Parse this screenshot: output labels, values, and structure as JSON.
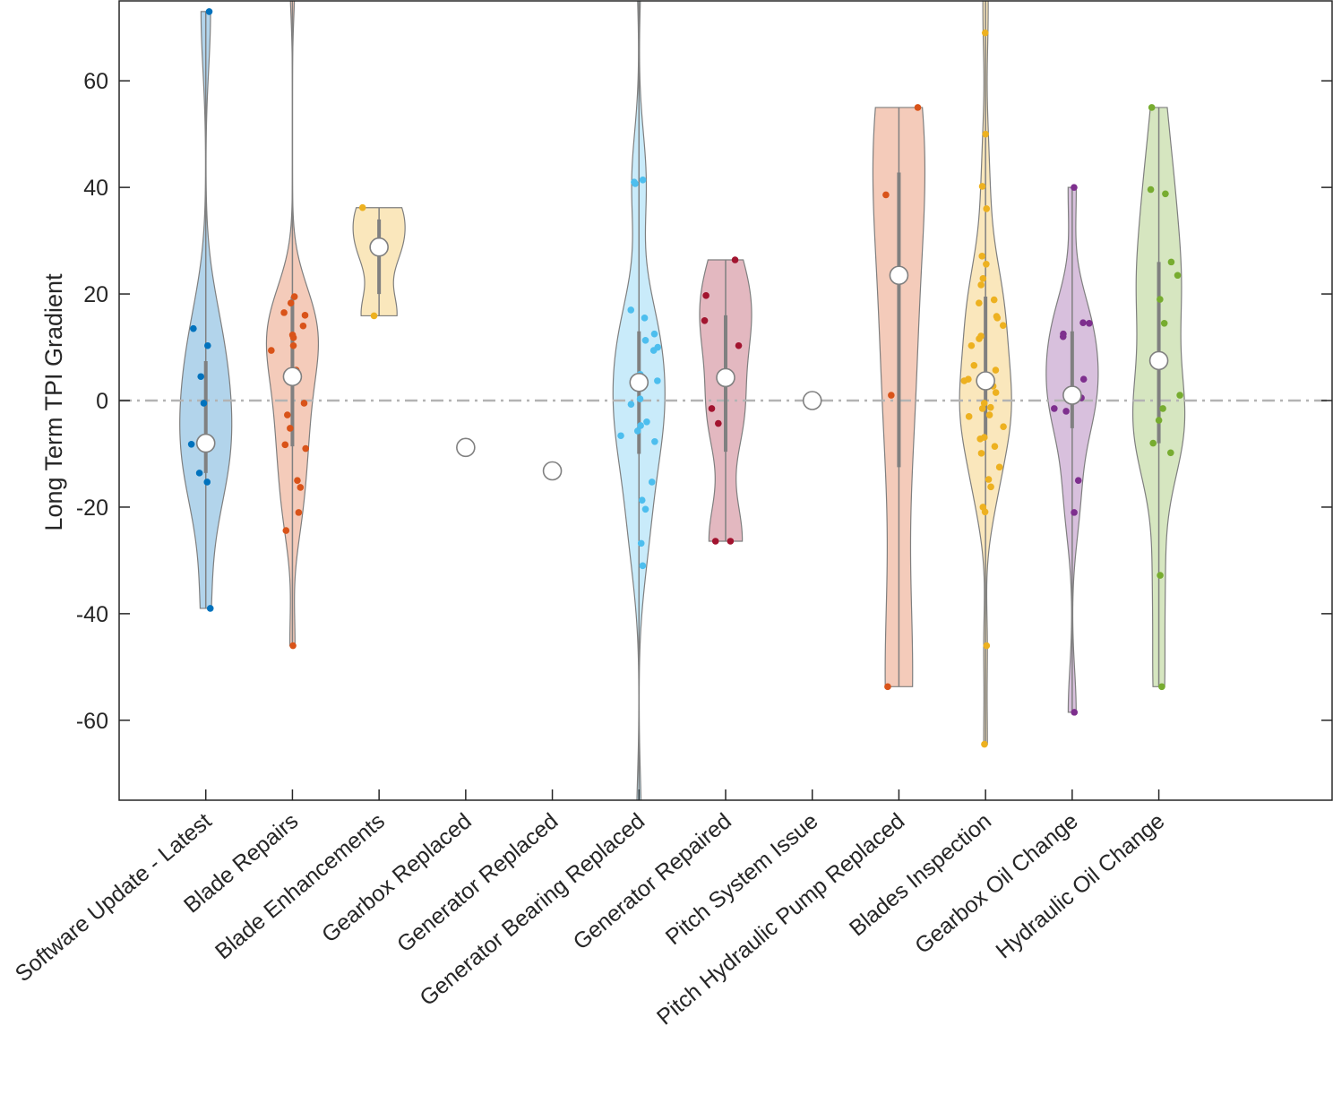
{
  "chart_data": {
    "type": "violin",
    "title": "",
    "xlabel": "",
    "ylabel": "Long Term TPI Gradient",
    "ylim": [
      -75,
      75
    ],
    "xlim": [
      0,
      14
    ],
    "yticks": [
      -60,
      -40,
      -20,
      0,
      20,
      40,
      60
    ],
    "ytick_labels": [
      "-60",
      "-40",
      "-20",
      "0",
      "20",
      "40",
      "60"
    ],
    "reference_line": {
      "y": 0,
      "style": "dash-dot",
      "color": "#b3b3b3"
    },
    "grid": false,
    "categories": [
      {
        "name": "Software Update - Latest",
        "color": "#0072BD",
        "median": -8,
        "q1": -13.6,
        "q3": 7.4,
        "points": [
          73,
          13.5,
          10.3,
          4.5,
          -0.5,
          -8,
          -8.2,
          -13.6,
          -15.3,
          -39
        ]
      },
      {
        "name": "Blade Repairs",
        "color": "#D95319",
        "median": 4.5,
        "q1": -8.6,
        "q3": 19.5,
        "points": [
          80,
          19.5,
          18.3,
          16.5,
          16,
          14,
          12.3,
          11.8,
          10.3,
          9.4,
          5.7,
          5.4,
          3.9,
          -0.5,
          -2.7,
          -5.2,
          -8.3,
          -9,
          -15,
          -16.3,
          -21,
          -24.4,
          -46
        ]
      },
      {
        "name": "Blade Enhancements",
        "color": "#EDB120",
        "median": 28.8,
        "q1": 20,
        "q3": 34,
        "points": [
          36.2,
          28.8,
          15.9
        ]
      },
      {
        "name": "Gearbox Replaced",
        "color": "#7E2F8E",
        "median": -8.8,
        "q1": -8.8,
        "q3": -8.8,
        "points": []
      },
      {
        "name": "Generator Replaced",
        "color": "#77AC30",
        "median": -13.2,
        "q1": -13.2,
        "q3": -13.2,
        "points": []
      },
      {
        "name": "Generator Bearing Replaced",
        "color": "#4DBEEE",
        "median": 3.4,
        "q1": -10,
        "q3": 13,
        "points": [
          85,
          41,
          41.4,
          40.7,
          17,
          15.5,
          12.5,
          11.3,
          10,
          9.4,
          4.9,
          3.7,
          0.3,
          -0.7,
          -4,
          -4.7,
          -5.7,
          -6.6,
          -7.7,
          -15.3,
          -18.7,
          -20.4,
          -26.8,
          -31,
          -80
        ]
      },
      {
        "name": "Generator Repaired",
        "color": "#A2142F",
        "median": 4.3,
        "q1": -9.6,
        "q3": 16,
        "points": [
          26.4,
          19.7,
          15,
          10.3,
          -1.5,
          -4.3,
          -26.4,
          -26.4
        ]
      },
      {
        "name": "Pitch System Issue",
        "color": "#0072BD",
        "median": 0,
        "q1": 0,
        "q3": 0,
        "points": []
      },
      {
        "name": "Pitch Hydraulic Pump Replaced",
        "color": "#D95319",
        "median": 23.5,
        "q1": -12.5,
        "q3": 42.8,
        "points": [
          55,
          38.6,
          1,
          -53.7
        ]
      },
      {
        "name": "Blades Inspection",
        "color": "#EDB120",
        "median": 3.7,
        "q1": -7.2,
        "q3": 19.5,
        "points": [
          80,
          69,
          50,
          40.2,
          36,
          27.1,
          25.6,
          22.9,
          21.7,
          18.9,
          18.3,
          15.8,
          15.5,
          14.1,
          12.1,
          11.6,
          10.3,
          6.6,
          5.7,
          4,
          3.7,
          2.7,
          1.5,
          -0.5,
          -1.3,
          -1.5,
          -2.7,
          -3,
          -4.9,
          -6.9,
          -7.2,
          -8.6,
          -9.9,
          -12.5,
          -14.8,
          -16.2,
          -20,
          -20.9,
          -46,
          -64.5
        ]
      },
      {
        "name": "Gearbox Oil Change",
        "color": "#7E2F8E",
        "median": 1,
        "q1": -5.2,
        "q3": 13,
        "points": [
          40,
          14.5,
          14.6,
          12.5,
          12,
          4,
          1,
          0.5,
          -1.5,
          -2,
          -15,
          -21,
          -58.5
        ]
      },
      {
        "name": "Hydraulic Oil Change",
        "color": "#77AC30",
        "median": 7.5,
        "q1": -8,
        "q3": 26,
        "points": [
          55,
          39.6,
          38.8,
          26,
          23.5,
          19,
          14.5,
          1,
          -1.5,
          -3.7,
          -8,
          -9.8,
          -32.8,
          -53.7
        ]
      }
    ]
  }
}
